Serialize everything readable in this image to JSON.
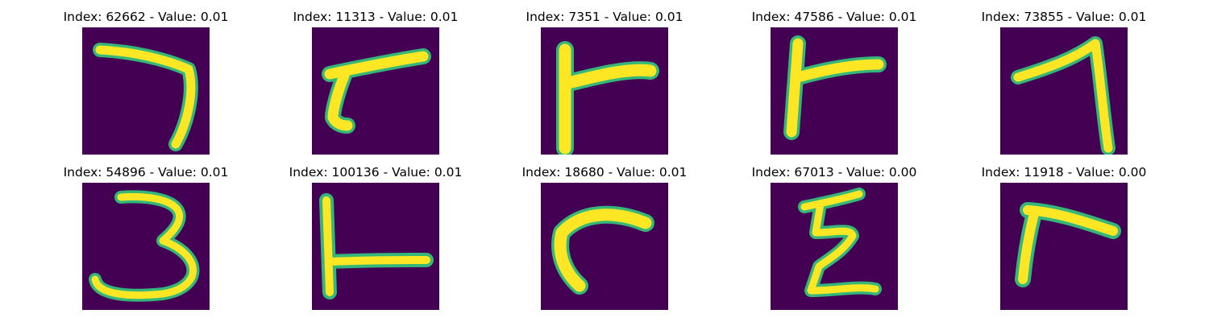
{
  "colors": {
    "background": "#440154",
    "stroke_fill": "#fde725",
    "stroke_edge": "#35b779"
  },
  "figure": {
    "panels": [
      {
        "title": "Index: 62662 - Value: 0.01",
        "glyph": "seven-like-stroke"
      },
      {
        "title": "Index: 11313 - Value: 0.01",
        "glyph": "slanted-r-stroke"
      },
      {
        "title": "Index: 7351 - Value: 0.01",
        "glyph": "r-like-stroke"
      },
      {
        "title": "Index: 47586 - Value: 0.01",
        "glyph": "r-like-stroke"
      },
      {
        "title": "Index: 73855 - Value: 0.01",
        "glyph": "one-like-stroke"
      },
      {
        "title": "Index: 54896 - Value: 0.01",
        "glyph": "three-like-stroke"
      },
      {
        "title": "Index: 100136 - Value: 0.01",
        "glyph": "l-like-stroke"
      },
      {
        "title": "Index: 18680 - Value: 0.01",
        "glyph": "c-hook-stroke"
      },
      {
        "title": "Index: 67013 - Value: 0.00",
        "glyph": "z-like-stroke"
      },
      {
        "title": "Index: 11918 - Value: 0.00",
        "glyph": "r-like-stroke"
      }
    ]
  }
}
